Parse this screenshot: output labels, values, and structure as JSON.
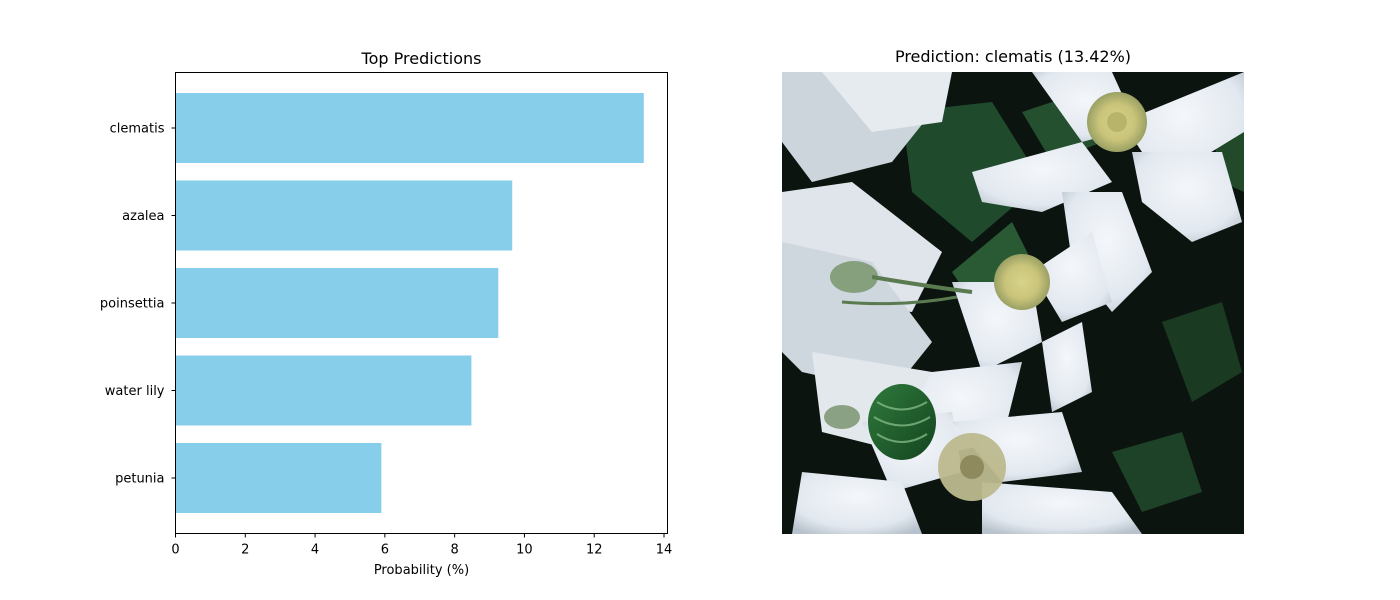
{
  "chart_data": [
    {
      "type": "bar",
      "orientation": "horizontal",
      "title": "Top Predictions",
      "xlabel": "Probability (%)",
      "ylabel": "",
      "categories": [
        "clematis",
        "azalea",
        "poinsettia",
        "water lily",
        "petunia"
      ],
      "values": [
        13.42,
        9.65,
        9.25,
        8.48,
        5.9
      ],
      "xlim": [
        0,
        14.1
      ],
      "xticks": [
        0,
        2,
        4,
        6,
        8,
        10,
        12,
        14
      ],
      "bar_color": "#87ceeb",
      "grid": false,
      "legend": "none"
    }
  ],
  "photo": {
    "title": "Prediction: clematis (13.42%)",
    "subject": "white clematis flowers with green leaves on dark background"
  },
  "colors": {
    "bar": "#87ceeb",
    "axis": "#000000",
    "background": "#ffffff"
  }
}
